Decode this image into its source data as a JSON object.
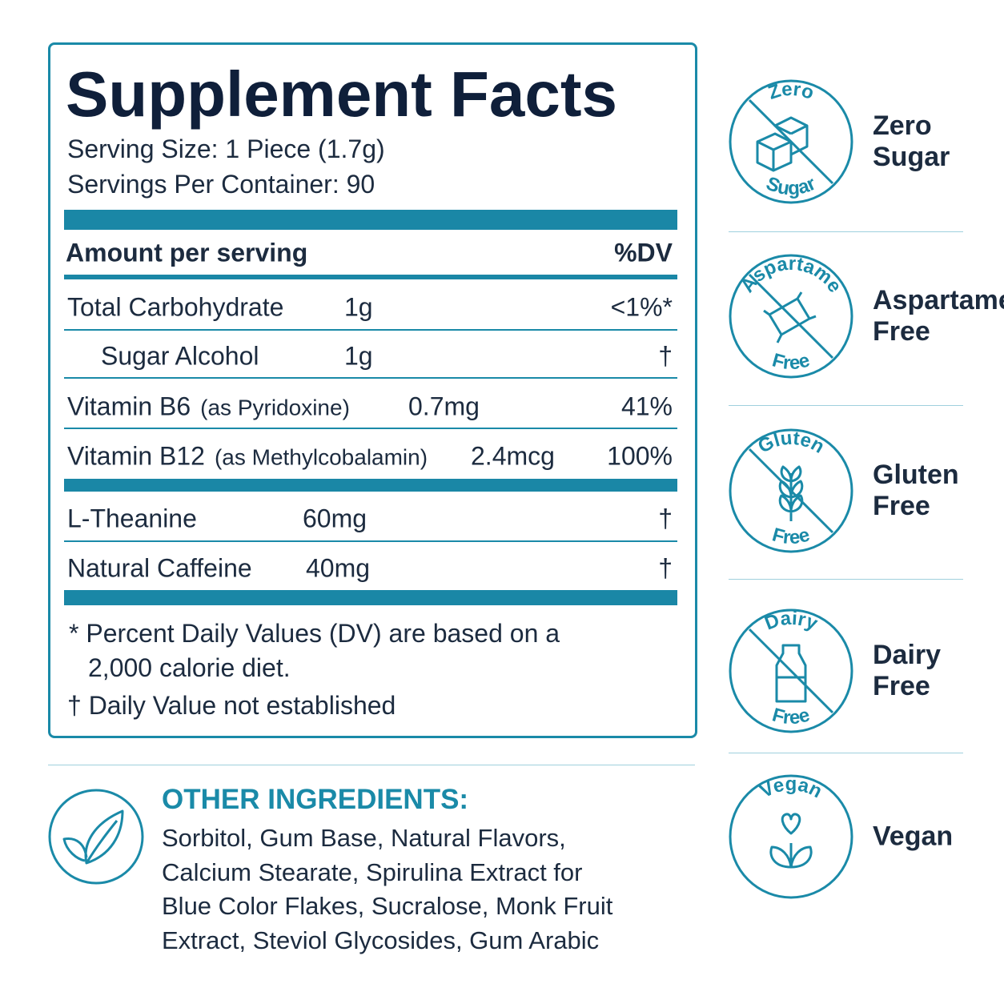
{
  "facts": {
    "title": "Supplement Facts",
    "serving_size": "Serving Size: 1 Piece (1.7g)",
    "servings_per_container": "Servings Per Container: 90",
    "header": [
      "Amount per serving",
      "%DV"
    ],
    "rows": [
      {
        "name": "Total Carbohydrate",
        "amount": "1g",
        "dv": "<1%*"
      },
      {
        "name": "Sugar Alcohol",
        "amount": "1g",
        "dv": "†"
      },
      {
        "name": "Vitamin B6",
        "note": "(as Pyridoxine)",
        "amount": "0.7mg",
        "dv": "41%"
      },
      {
        "name": "Vitamin B12",
        "note": "(as Methylcobalamin)",
        "amount": "2.4mcg",
        "dv": "100%"
      },
      {
        "name": "L-Theanine",
        "amount": "60mg",
        "dv": "†"
      },
      {
        "name": "Natural Caffeine",
        "amount": "40mg",
        "dv": "†"
      }
    ],
    "footnotes": [
      "* Percent Daily Values (DV) are based on a 2,000 calorie diet.",
      "† Daily Value not established"
    ]
  },
  "other_ingredients": {
    "title": "OTHER INGREDIENTS:",
    "text": "Sorbitol, Gum Base, Natural Flavors, Calcium Stearate, Spirulina Extract for Blue Color Flakes, Sucralose, Monk Fruit Extract, Steviol Glycosides, Gum Arabic"
  },
  "badges": [
    {
      "icon_top": "Zero",
      "icon_bottom": "Sugar",
      "label": "Zero Sugar"
    },
    {
      "icon_top": "Aspartame",
      "icon_bottom": "Free",
      "label": "Aspartame Free"
    },
    {
      "icon_top": "Gluten",
      "icon_bottom": "Free",
      "label": "Gluten Free"
    },
    {
      "icon_top": "Dairy",
      "icon_bottom": "Free",
      "label": "Dairy Free"
    },
    {
      "icon_top": "Vegan",
      "label": "Vegan"
    }
  ]
}
